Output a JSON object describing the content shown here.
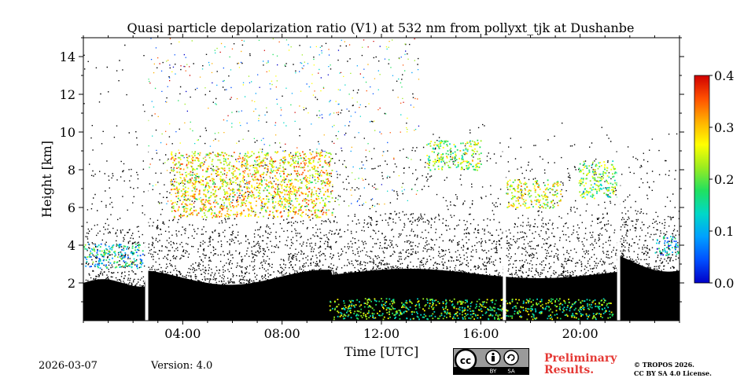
{
  "chart_data": {
    "type": "heatmap",
    "title": "Quasi particle depolarization ratio (V1) at 532 nm from pollyxt_tjk at Dushanbe",
    "xlabel": "Time [UTC]",
    "ylabel": "Height [km]",
    "xlim_hours": [
      0,
      24
    ],
    "ylim_km": [
      0,
      15
    ],
    "x_ticks": [
      {
        "value": 4,
        "label": "04:00"
      },
      {
        "value": 8,
        "label": "08:00"
      },
      {
        "value": 12,
        "label": "12:00"
      },
      {
        "value": 16,
        "label": "16:00"
      },
      {
        "value": 20,
        "label": "20:00"
      }
    ],
    "y_ticks": [
      {
        "value": 2,
        "label": "2"
      },
      {
        "value": 4,
        "label": "4"
      },
      {
        "value": 6,
        "label": "6"
      },
      {
        "value": 8,
        "label": "8"
      },
      {
        "value": 10,
        "label": "10"
      },
      {
        "value": 12,
        "label": "12"
      },
      {
        "value": 14,
        "label": "14"
      }
    ],
    "colorbar": {
      "min": 0.0,
      "max": 0.4,
      "ticks": [
        {
          "value": 0.0,
          "label": "0.0"
        },
        {
          "value": 0.1,
          "label": "0.1"
        },
        {
          "value": 0.2,
          "label": "0.2"
        },
        {
          "value": 0.3,
          "label": "0.3"
        },
        {
          "value": 0.4,
          "label": "0.4"
        }
      ],
      "colormap": [
        "#0000c8",
        "#0050ff",
        "#00a0ff",
        "#00d8c8",
        "#20e060",
        "#9aec20",
        "#ffff00",
        "#ffb000",
        "#ff5000",
        "#d00000"
      ]
    },
    "data_gaps_hours": [
      2.55,
      16.95,
      21.55
    ],
    "features": [
      {
        "name": "near-surface low-depol layer",
        "t_start": 0.0,
        "t_end": 24.0,
        "h_bottom": 0.0,
        "h_top": 2.5,
        "value": 0.0
      },
      {
        "name": "morning aerosol layer",
        "t_start": 0.0,
        "t_end": 2.4,
        "h_bottom": 2.8,
        "h_top": 4.1,
        "value": 0.13
      },
      {
        "name": "dust layer near surface",
        "t_start": 9.9,
        "t_end": 21.3,
        "h_bottom": 0.1,
        "h_top": 1.2,
        "value": 0.2
      },
      {
        "name": "mid-level clouds",
        "t_start": 3.5,
        "t_end": 10.0,
        "h_bottom": 5.5,
        "h_top": 9.0,
        "value": 0.28
      },
      {
        "name": "afternoon cirrus",
        "t_start": 17.0,
        "t_end": 19.2,
        "h_bottom": 6.0,
        "h_top": 7.5,
        "value": 0.25
      },
      {
        "name": "evening cloud",
        "t_start": 19.9,
        "t_end": 21.5,
        "h_bottom": 6.5,
        "h_top": 8.5,
        "value": 0.2
      },
      {
        "name": "high-altitude layer",
        "t_start": 13.8,
        "t_end": 16.0,
        "h_bottom": 8.0,
        "h_top": 9.6,
        "value": 0.22
      },
      {
        "name": "late evening aerosol",
        "t_start": 23.0,
        "t_end": 24.0,
        "h_bottom": 3.5,
        "h_top": 4.5,
        "value": 0.1
      }
    ]
  },
  "footer": {
    "date": "2026-03-07",
    "version": "Version: 4.0",
    "preliminary_line1": "Preliminary",
    "preliminary_line2": "Results.",
    "copyright_line1": "© TROPOS 2026.",
    "copyright_line2": "CC BY SA 4.0 License.",
    "license_badge": {
      "cc": "cc",
      "by": "BY",
      "sa": "SA"
    }
  }
}
